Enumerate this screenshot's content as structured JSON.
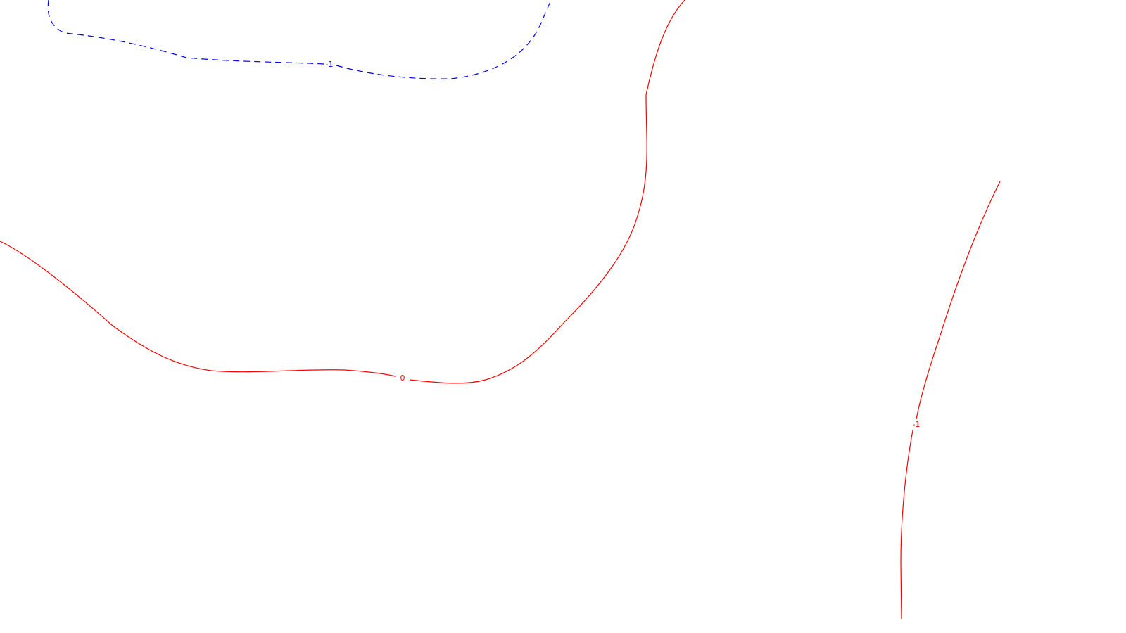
{
  "contour_map": {
    "background_color": "#ffffff",
    "contours": [
      {
        "id": "contour-1-upper-left",
        "label": "-1",
        "color": "#0000ff",
        "line_style": "dashed"
      },
      {
        "id": "contour-0",
        "label": "0",
        "color": "#ff0000",
        "line_style": "solid"
      },
      {
        "id": "contour-1-right",
        "label": "-1",
        "color": "#ff0000",
        "line_style": "solid"
      }
    ]
  }
}
